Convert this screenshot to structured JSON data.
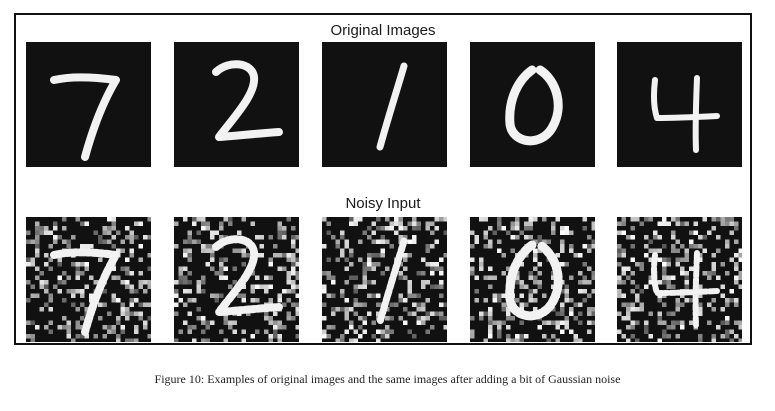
{
  "figure": {
    "original_title": "Original Images",
    "noisy_title": "Noisy Input",
    "digits": [
      "7",
      "2",
      "1",
      "0",
      "4"
    ],
    "caption": "Figure 10: Examples of original images and the same images after adding a bit of Gaussian noise",
    "colors": {
      "background": "#111111",
      "stroke": "#f2f2f2",
      "frame": "#111111",
      "text": "#1a1a1a"
    }
  }
}
